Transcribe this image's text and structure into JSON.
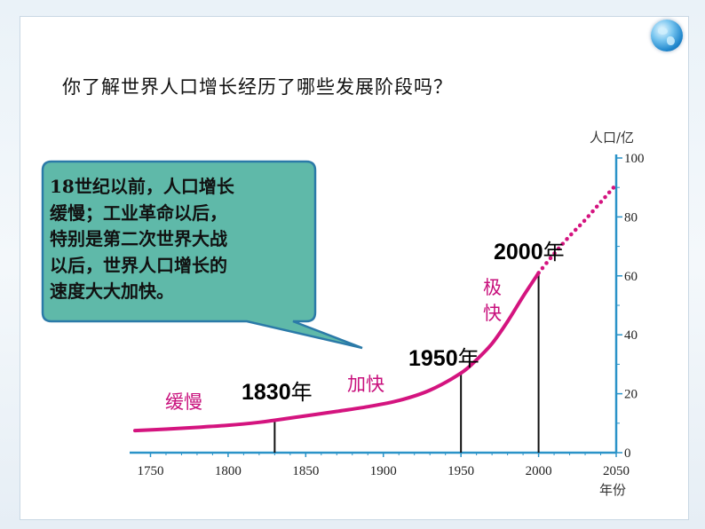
{
  "question": "你了解世界人口增长经历了哪些发展阶段吗？",
  "callout": {
    "lines": [
      "18世纪以前，人口增长",
      "缓慢；工业革命以后，",
      "特别是第二次世界大战",
      "以后，世界人口增长的",
      "速度大大加快。"
    ]
  },
  "colors": {
    "curve": "#d4147f",
    "axis": "#2a93c8",
    "bubble_fill": "#5fb9a9",
    "bubble_stroke": "#2b7aa8",
    "annotation": "#c8107c"
  },
  "chart_data": {
    "type": "line",
    "title": "",
    "xlabel": "年份",
    "ylabel": "人口/亿",
    "xlim": [
      1740,
      2050
    ],
    "ylim": [
      0,
      100
    ],
    "x_ticks": [
      "1750",
      "1800",
      "1850",
      "1900",
      "1950",
      "2000",
      "2050"
    ],
    "y_ticks": [
      "0",
      "20",
      "40",
      "60",
      "80",
      "100"
    ],
    "series": [
      {
        "style": "solid",
        "x": [
          1740,
          1760,
          1780,
          1800,
          1820,
          1830,
          1850,
          1870,
          1890,
          1910,
          1930,
          1950,
          1960,
          1970,
          1980,
          1990,
          2000
        ],
        "y": [
          7.5,
          8,
          8.6,
          9.3,
          10.3,
          11,
          12.5,
          14,
          15.6,
          17.7,
          21.2,
          27,
          31.5,
          37,
          44.5,
          53,
          61
        ]
      },
      {
        "style": "dotted",
        "x": [
          2000,
          2010,
          2020,
          2030,
          2040,
          2050
        ],
        "y": [
          61,
          67.5,
          73.5,
          79,
          85,
          91
        ]
      }
    ],
    "markers": [
      {
        "x": 1830,
        "y": 11,
        "label_year": "1830",
        "label_unit": "年"
      },
      {
        "x": 1950,
        "y": 27,
        "label_year": "1950",
        "label_unit": "年"
      },
      {
        "x": 2000,
        "y": 61,
        "label_year": "2000",
        "label_unit": "年"
      }
    ],
    "stage_labels": [
      "缓慢",
      "加快",
      "极",
      "快"
    ]
  }
}
